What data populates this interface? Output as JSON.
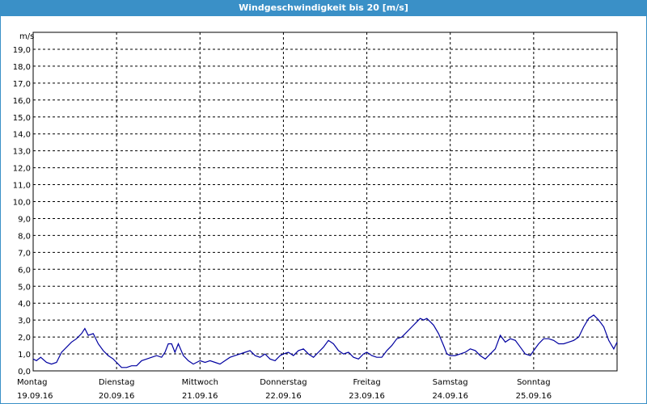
{
  "window": {
    "title": "Windgeschwindigkeit bis 20 [m/s]"
  },
  "colors": {
    "titlebar": "#3a90c7",
    "series": "#0000a0",
    "grid": "#000000"
  },
  "chart_data": {
    "type": "line",
    "title": "Windgeschwindigkeit bis 20 [m/s]",
    "ylabel": "m/s",
    "ylim": [
      0,
      20
    ],
    "yticks": [
      "0,0",
      "1,0",
      "2,0",
      "3,0",
      "4,0",
      "5,0",
      "6,0",
      "7,0",
      "8,0",
      "9,0",
      "10,0",
      "11,0",
      "12,0",
      "13,0",
      "14,0",
      "15,0",
      "16,0",
      "17,0",
      "18,0",
      "19,0"
    ],
    "xlim": [
      0,
      7
    ],
    "grid": true,
    "days": [
      {
        "day": "Montag",
        "date": "19.09.16"
      },
      {
        "day": "Dienstag",
        "date": "20.09.16"
      },
      {
        "day": "Mittwoch",
        "date": "21.09.16"
      },
      {
        "day": "Donnerstag",
        "date": "22.09.16"
      },
      {
        "day": "Freitag",
        "date": "23.09.16"
      },
      {
        "day": "Samstag",
        "date": "24.09.16"
      },
      {
        "day": "Sonntag",
        "date": "25.09.16"
      }
    ],
    "series": [
      {
        "x": [
          0,
          0.04,
          0.09,
          0.16,
          0.22,
          0.28,
          0.34,
          0.4,
          0.46,
          0.52,
          0.58,
          0.62,
          0.66,
          0.72,
          0.78,
          0.84,
          0.9,
          0.96,
          1.0,
          1.06,
          1.12,
          1.18,
          1.24,
          1.3,
          1.36,
          1.42,
          1.48,
          1.54,
          1.58,
          1.62,
          1.66,
          1.7,
          1.74,
          1.8,
          1.86,
          1.92,
          1.96,
          2.0,
          2.06,
          2.12,
          2.18,
          2.24,
          2.3,
          2.36,
          2.42,
          2.48,
          2.54,
          2.6,
          2.66,
          2.72,
          2.78,
          2.84,
          2.9,
          2.96,
          3.0,
          3.06,
          3.12,
          3.18,
          3.24,
          3.3,
          3.36,
          3.42,
          3.48,
          3.54,
          3.6,
          3.66,
          3.72,
          3.78,
          3.84,
          3.9,
          3.96,
          4.0,
          4.06,
          4.12,
          4.18,
          4.24,
          4.3,
          4.36,
          4.42,
          4.48,
          4.54,
          4.6,
          4.64,
          4.68,
          4.72,
          4.76,
          4.8,
          4.86,
          4.92,
          4.96,
          5.0,
          5.06,
          5.12,
          5.18,
          5.24,
          5.3,
          5.36,
          5.42,
          5.48,
          5.54,
          5.6,
          5.66,
          5.72,
          5.78,
          5.84,
          5.9,
          5.96,
          6.0,
          6.06,
          6.12,
          6.18,
          6.24,
          6.3,
          6.36,
          6.42,
          6.48,
          6.54,
          6.6,
          6.66,
          6.72,
          6.78,
          6.84,
          6.9,
          6.96,
          7.0
        ],
        "values": [
          0.7,
          0.6,
          0.8,
          0.5,
          0.4,
          0.5,
          1.1,
          1.4,
          1.7,
          1.9,
          2.2,
          2.5,
          2.1,
          2.2,
          1.6,
          1.2,
          0.9,
          0.7,
          0.5,
          0.2,
          0.2,
          0.3,
          0.3,
          0.6,
          0.7,
          0.8,
          0.9,
          0.8,
          1.1,
          1.6,
          1.6,
          1.1,
          1.6,
          0.9,
          0.6,
          0.4,
          0.5,
          0.6,
          0.5,
          0.6,
          0.5,
          0.4,
          0.6,
          0.8,
          0.9,
          1.0,
          1.1,
          1.2,
          0.9,
          0.8,
          1.0,
          0.7,
          0.6,
          0.9,
          1.0,
          1.1,
          0.9,
          1.2,
          1.3,
          1.0,
          0.8,
          1.1,
          1.4,
          1.8,
          1.6,
          1.2,
          1.0,
          1.1,
          0.8,
          0.7,
          1.0,
          1.1,
          0.9,
          0.8,
          0.8,
          1.2,
          1.5,
          1.9,
          2.0,
          2.3,
          2.6,
          2.9,
          3.1,
          3.0,
          3.1,
          2.9,
          2.7,
          2.2,
          1.5,
          1.0,
          0.9,
          0.9,
          1.0,
          1.1,
          1.3,
          1.2,
          0.9,
          0.7,
          1.0,
          1.3,
          2.1,
          1.7,
          1.9,
          1.8,
          1.4,
          1.0,
          0.9,
          1.2,
          1.6,
          1.9,
          1.9,
          1.8,
          1.6,
          1.6,
          1.7,
          1.8,
          2.0,
          2.6,
          3.1,
          3.3,
          3.0,
          2.6,
          1.8,
          1.3,
          1.7
        ]
      }
    ]
  }
}
